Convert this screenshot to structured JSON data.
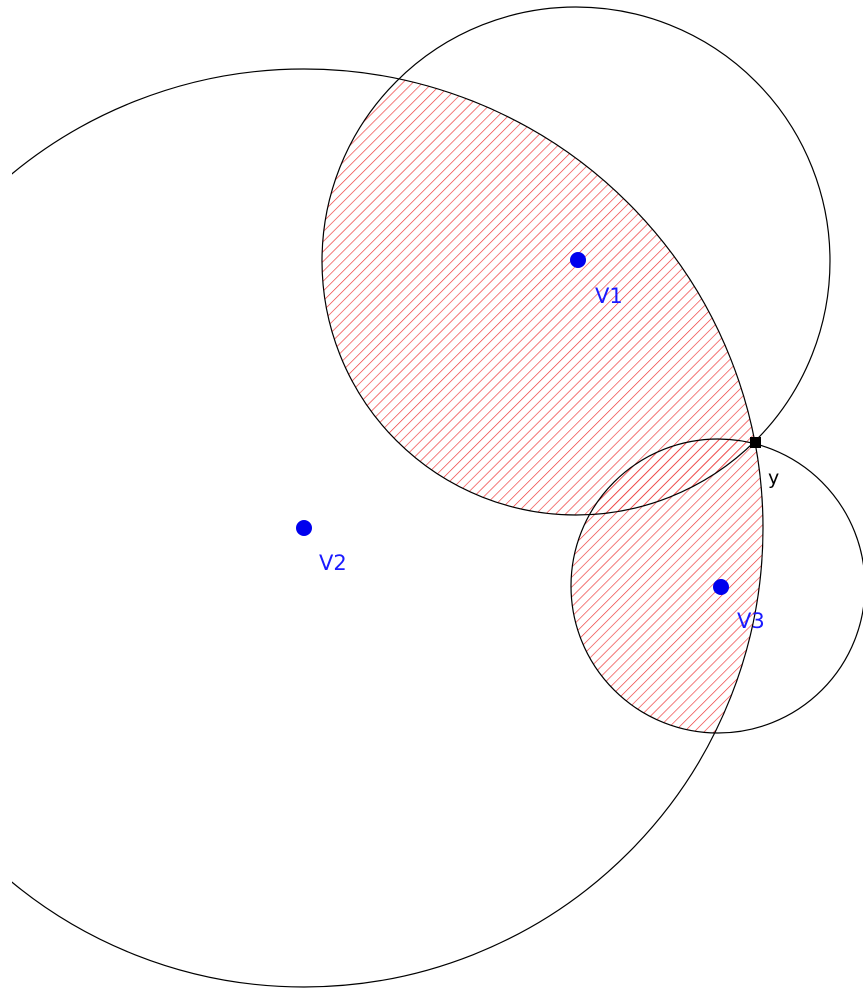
{
  "points": [
    {
      "label": "V1"
    },
    {
      "label": "V2"
    },
    {
      "label": "V3"
    }
  ],
  "intersection": {
    "label": "y"
  }
}
